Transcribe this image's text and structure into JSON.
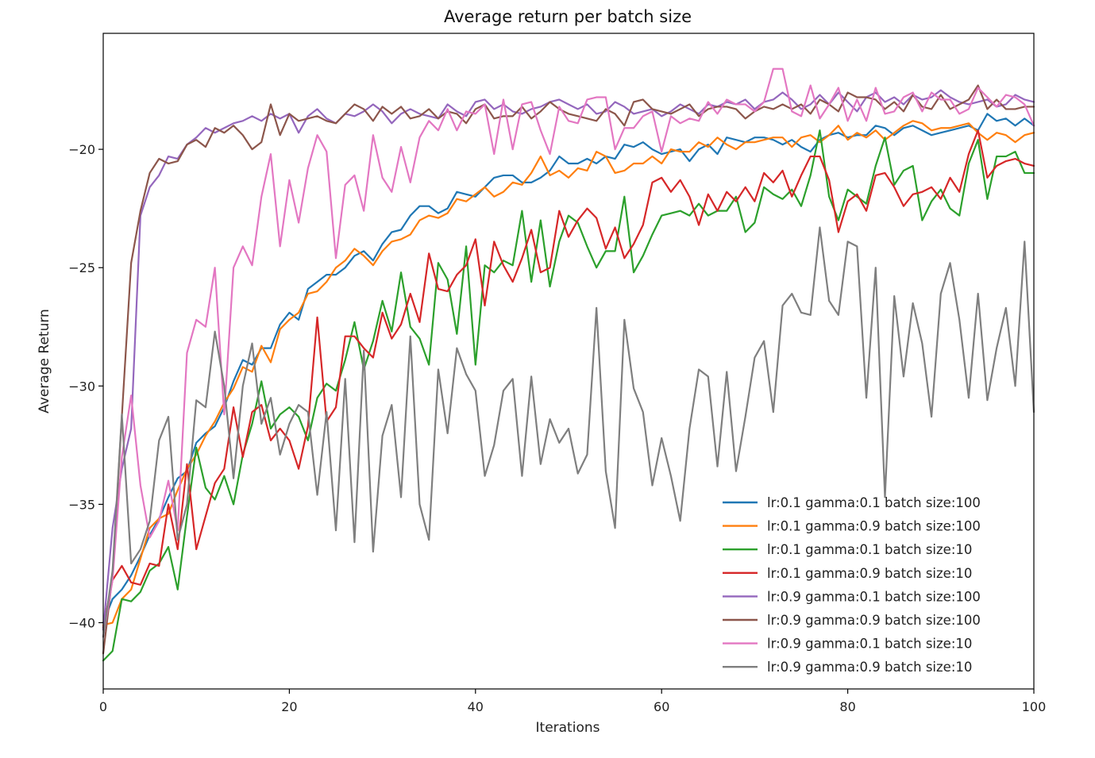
{
  "chart_data": {
    "type": "line",
    "title": "Average return per batch size",
    "xlabel": "Iterations",
    "ylabel": "Average Return",
    "xlim": [
      0,
      100
    ],
    "ylim": [
      -42.8,
      -15.1
    ],
    "x_ticks": [
      0,
      20,
      40,
      60,
      80,
      100
    ],
    "y_ticks": [
      -40,
      -35,
      -30,
      -25,
      -20
    ],
    "grid": false,
    "legend_position": "lower-right",
    "x_start": 0,
    "x_step": 1,
    "series": [
      {
        "name": "lr:0.1 gamma:0.1 batch size:100",
        "color": "#1f77b4",
        "values": [
          -40.0,
          -39.0,
          -38.6,
          -38.0,
          -37.2,
          -36.3,
          -35.6,
          -34.7,
          -33.9,
          -33.6,
          -32.4,
          -32.0,
          -31.7,
          -30.9,
          -29.8,
          -28.9,
          -29.1,
          -28.4,
          -28.4,
          -27.4,
          -26.9,
          -27.2,
          -25.9,
          -25.6,
          -25.3,
          -25.3,
          -25.0,
          -24.5,
          -24.3,
          -24.7,
          -24.0,
          -23.5,
          -23.4,
          -22.8,
          -22.4,
          -22.4,
          -22.7,
          -22.5,
          -21.8,
          -21.9,
          -22.0,
          -21.6,
          -21.2,
          -21.1,
          -21.1,
          -21.4,
          -21.4,
          -21.2,
          -20.9,
          -20.3,
          -20.6,
          -20.6,
          -20.4,
          -20.6,
          -20.3,
          -20.4,
          -19.8,
          -19.9,
          -19.7,
          -20.0,
          -20.2,
          -20.1,
          -20.0,
          -20.5,
          -20.0,
          -19.8,
          -20.2,
          -19.5,
          -19.6,
          -19.7,
          -19.5,
          -19.5,
          -19.6,
          -19.8,
          -19.6,
          -19.9,
          -20.1,
          -19.6,
          -19.4,
          -19.3,
          -19.5,
          -19.4,
          -19.4,
          -19.0,
          -19.1,
          -19.4,
          -19.1,
          -19.0,
          -19.2,
          -19.4,
          -19.3,
          -19.2,
          -19.1,
          -19.0,
          -19.2,
          -18.5,
          -18.8,
          -18.7,
          -19.0,
          -18.7,
          -19.0
        ]
      },
      {
        "name": "lr:0.1 gamma:0.9 batch size:100",
        "color": "#ff7f0e",
        "values": [
          -40.1,
          -40.0,
          -39.0,
          -38.6,
          -37.3,
          -36.0,
          -35.6,
          -35.4,
          -34.4,
          -33.5,
          -32.9,
          -32.1,
          -31.5,
          -30.7,
          -30.1,
          -29.2,
          -29.4,
          -28.3,
          -29.0,
          -27.6,
          -27.2,
          -26.9,
          -26.1,
          -26.0,
          -25.6,
          -25.0,
          -24.7,
          -24.2,
          -24.5,
          -24.9,
          -24.3,
          -23.9,
          -23.8,
          -23.6,
          -23.0,
          -22.8,
          -22.9,
          -22.7,
          -22.1,
          -22.2,
          -21.9,
          -21.6,
          -22.0,
          -21.8,
          -21.4,
          -21.5,
          -21.0,
          -20.3,
          -21.1,
          -20.9,
          -21.2,
          -20.8,
          -20.9,
          -20.1,
          -20.3,
          -21.0,
          -20.9,
          -20.6,
          -20.6,
          -20.3,
          -20.6,
          -20.0,
          -20.1,
          -20.1,
          -19.7,
          -19.9,
          -19.5,
          -19.8,
          -20.0,
          -19.7,
          -19.7,
          -19.6,
          -19.5,
          -19.5,
          -19.9,
          -19.5,
          -19.4,
          -19.7,
          -19.4,
          -19.0,
          -19.6,
          -19.3,
          -19.5,
          -19.2,
          -19.6,
          -19.3,
          -19.0,
          -18.8,
          -18.9,
          -19.2,
          -19.1,
          -19.1,
          -19.0,
          -18.9,
          -19.3,
          -19.6,
          -19.3,
          -19.4,
          -19.7,
          -19.4,
          -19.3
        ]
      },
      {
        "name": "lr:0.1 gamma:0.1 batch size:10",
        "color": "#2ca02c",
        "values": [
          -41.6,
          -41.2,
          -39.0,
          -39.1,
          -38.7,
          -37.8,
          -37.5,
          -36.8,
          -38.6,
          -35.5,
          -32.6,
          -34.3,
          -34.8,
          -33.8,
          -35.0,
          -32.9,
          -31.6,
          -29.8,
          -31.8,
          -31.2,
          -30.9,
          -31.3,
          -32.3,
          -30.5,
          -29.9,
          -30.2,
          -28.9,
          -27.3,
          -29.3,
          -28.1,
          -26.4,
          -27.7,
          -25.2,
          -27.5,
          -28.0,
          -29.1,
          -24.8,
          -25.5,
          -27.8,
          -24.1,
          -29.1,
          -24.9,
          -25.2,
          -24.7,
          -24.9,
          -22.6,
          -25.6,
          -23.0,
          -25.8,
          -23.9,
          -22.8,
          -23.1,
          -24.1,
          -25.0,
          -24.3,
          -24.3,
          -22.0,
          -25.2,
          -24.5,
          -23.6,
          -22.8,
          -22.7,
          -22.6,
          -22.8,
          -22.3,
          -22.8,
          -22.6,
          -22.6,
          -22.0,
          -23.5,
          -23.1,
          -21.6,
          -21.9,
          -22.1,
          -21.7,
          -22.4,
          -21.1,
          -19.2,
          -22.0,
          -23.0,
          -21.7,
          -22.0,
          -22.3,
          -20.7,
          -19.5,
          -21.5,
          -20.9,
          -20.7,
          -23.0,
          -22.2,
          -21.7,
          -22.5,
          -22.8,
          -20.6,
          -19.6,
          -22.1,
          -20.3,
          -20.3,
          -20.1,
          -21.0,
          -21.0
        ]
      },
      {
        "name": "lr:0.1 gamma:0.9 batch size:10",
        "color": "#d62728",
        "values": [
          -40.2,
          -38.2,
          -37.6,
          -38.3,
          -38.4,
          -37.5,
          -37.6,
          -35.0,
          -36.9,
          -33.3,
          -36.9,
          -35.5,
          -34.1,
          -33.5,
          -30.9,
          -33.0,
          -31.1,
          -30.8,
          -32.3,
          -31.8,
          -32.3,
          -33.5,
          -31.7,
          -27.1,
          -31.5,
          -30.9,
          -27.9,
          -27.9,
          -28.4,
          -28.8,
          -26.9,
          -28.0,
          -27.4,
          -26.1,
          -27.3,
          -24.4,
          -25.9,
          -26.0,
          -25.3,
          -24.9,
          -23.8,
          -26.6,
          -23.9,
          -24.9,
          -25.6,
          -24.6,
          -23.4,
          -25.2,
          -25.0,
          -22.6,
          -23.7,
          -23.0,
          -22.5,
          -22.9,
          -24.2,
          -23.3,
          -24.6,
          -24.0,
          -23.2,
          -21.4,
          -21.2,
          -21.8,
          -21.3,
          -22.0,
          -23.2,
          -21.9,
          -22.6,
          -21.8,
          -22.2,
          -21.6,
          -22.2,
          -21.0,
          -21.4,
          -20.9,
          -22.0,
          -21.1,
          -20.3,
          -20.3,
          -21.3,
          -23.5,
          -22.2,
          -21.9,
          -22.6,
          -21.1,
          -21.0,
          -21.6,
          -22.4,
          -21.9,
          -21.8,
          -21.6,
          -22.1,
          -21.2,
          -21.8,
          -20.2,
          -19.2,
          -21.2,
          -20.7,
          -20.5,
          -20.4,
          -20.6,
          -20.7
        ]
      },
      {
        "name": "lr:0.9 gamma:0.1 batch size:100",
        "color": "#9467bd",
        "values": [
          -40.3,
          -36.0,
          -33.5,
          -31.8,
          -22.8,
          -21.6,
          -21.1,
          -20.3,
          -20.4,
          -19.8,
          -19.5,
          -19.1,
          -19.3,
          -19.1,
          -18.9,
          -18.8,
          -18.6,
          -18.8,
          -18.5,
          -18.7,
          -18.5,
          -19.3,
          -18.6,
          -18.3,
          -18.7,
          -18.9,
          -18.5,
          -18.6,
          -18.4,
          -18.1,
          -18.4,
          -18.9,
          -18.5,
          -18.3,
          -18.5,
          -18.6,
          -18.7,
          -18.1,
          -18.4,
          -18.6,
          -18.0,
          -17.9,
          -18.3,
          -18.1,
          -18.4,
          -18.5,
          -18.3,
          -18.2,
          -18.0,
          -17.9,
          -18.1,
          -18.3,
          -18.1,
          -18.5,
          -18.4,
          -18.0,
          -18.2,
          -18.5,
          -18.4,
          -18.3,
          -18.6,
          -18.4,
          -18.1,
          -18.3,
          -18.5,
          -18.1,
          -18.2,
          -18.0,
          -18.1,
          -17.9,
          -18.3,
          -18.0,
          -17.9,
          -17.6,
          -17.9,
          -18.3,
          -18.1,
          -17.7,
          -18.1,
          -17.6,
          -18.0,
          -18.4,
          -17.8,
          -17.6,
          -18.0,
          -17.8,
          -18.1,
          -17.7,
          -17.9,
          -17.8,
          -17.5,
          -17.8,
          -18.0,
          -18.1,
          -18.0,
          -17.9,
          -18.2,
          -18.1,
          -17.7,
          -17.9,
          -18.0
        ]
      },
      {
        "name": "lr:0.9 gamma:0.9 batch size:100",
        "color": "#8c564b",
        "values": [
          -41.3,
          -38.0,
          -31.3,
          -24.8,
          -22.6,
          -21.0,
          -20.4,
          -20.6,
          -20.5,
          -19.8,
          -19.6,
          -19.9,
          -19.1,
          -19.3,
          -19.0,
          -19.4,
          -20.0,
          -19.7,
          -18.1,
          -19.4,
          -18.5,
          -18.8,
          -18.7,
          -18.6,
          -18.8,
          -18.9,
          -18.5,
          -18.1,
          -18.3,
          -18.8,
          -18.2,
          -18.5,
          -18.2,
          -18.7,
          -18.6,
          -18.3,
          -18.7,
          -18.4,
          -18.5,
          -18.9,
          -18.3,
          -18.1,
          -18.7,
          -18.6,
          -18.6,
          -18.2,
          -18.7,
          -18.4,
          -18.0,
          -18.3,
          -18.5,
          -18.6,
          -18.7,
          -18.8,
          -18.3,
          -18.5,
          -19.0,
          -18.0,
          -17.9,
          -18.3,
          -18.4,
          -18.5,
          -18.3,
          -18.1,
          -18.6,
          -18.3,
          -18.2,
          -18.2,
          -18.3,
          -18.7,
          -18.4,
          -18.2,
          -18.3,
          -18.1,
          -18.3,
          -18.1,
          -18.5,
          -17.9,
          -18.1,
          -18.4,
          -17.6,
          -17.8,
          -17.8,
          -17.9,
          -18.3,
          -18.0,
          -18.4,
          -17.7,
          -18.2,
          -18.3,
          -17.7,
          -18.3,
          -18.1,
          -17.9,
          -17.3,
          -18.3,
          -17.9,
          -18.3,
          -18.3,
          -18.2,
          -18.2
        ]
      },
      {
        "name": "lr:0.9 gamma:0.1 batch size:10",
        "color": "#e377c2",
        "values": [
          -40.6,
          -38.2,
          -33.0,
          -30.4,
          -34.2,
          -36.4,
          -35.7,
          -34.0,
          -36.1,
          -28.6,
          -27.2,
          -27.5,
          -25.0,
          -31.2,
          -25.0,
          -24.1,
          -24.9,
          -22.0,
          -20.2,
          -24.1,
          -21.3,
          -23.1,
          -20.8,
          -19.4,
          -20.1,
          -24.6,
          -21.5,
          -21.1,
          -22.6,
          -19.4,
          -21.2,
          -21.8,
          -19.9,
          -21.4,
          -19.5,
          -18.8,
          -19.2,
          -18.3,
          -19.2,
          -18.4,
          -18.5,
          -18.1,
          -20.2,
          -17.9,
          -20.0,
          -18.1,
          -18.0,
          -19.2,
          -20.2,
          -18.2,
          -18.8,
          -18.9,
          -17.9,
          -17.8,
          -17.8,
          -20.0,
          -19.1,
          -19.1,
          -18.6,
          -18.4,
          -20.1,
          -18.6,
          -18.9,
          -18.7,
          -18.8,
          -18.0,
          -18.5,
          -17.9,
          -18.1,
          -18.1,
          -18.4,
          -18.0,
          -16.6,
          -16.6,
          -18.4,
          -18.6,
          -17.3,
          -18.7,
          -18.1,
          -17.4,
          -18.8,
          -17.9,
          -18.8,
          -17.4,
          -18.5,
          -18.4,
          -17.8,
          -17.6,
          -18.4,
          -17.6,
          -17.9,
          -17.9,
          -18.5,
          -18.3,
          -17.4,
          -17.8,
          -18.2,
          -17.7,
          -17.8,
          -18.1,
          -19.0
        ]
      },
      {
        "name": "lr:0.9 gamma:0.9 batch size:10",
        "color": "#7f7f7f",
        "values": [
          -40.6,
          -37.8,
          -31.2,
          -37.5,
          -36.9,
          -35.7,
          -32.3,
          -31.3,
          -36.5,
          -35.0,
          -30.6,
          -30.9,
          -27.7,
          -30.0,
          -33.9,
          -30.0,
          -28.2,
          -31.6,
          -30.5,
          -32.9,
          -31.6,
          -30.8,
          -31.1,
          -34.6,
          -31.1,
          -36.1,
          -29.7,
          -36.6,
          -28.5,
          -37.0,
          -32.1,
          -30.8,
          -34.7,
          -27.9,
          -35.0,
          -36.5,
          -29.3,
          -32.0,
          -28.4,
          -29.5,
          -30.2,
          -33.8,
          -32.5,
          -30.2,
          -29.7,
          -33.8,
          -29.6,
          -33.3,
          -31.4,
          -32.4,
          -31.8,
          -33.7,
          -32.9,
          -26.7,
          -33.6,
          -36.0,
          -27.2,
          -30.1,
          -31.1,
          -34.2,
          -32.2,
          -33.8,
          -35.7,
          -31.8,
          -29.3,
          -29.6,
          -33.4,
          -29.4,
          -33.6,
          -31.3,
          -28.8,
          -28.1,
          -31.1,
          -26.6,
          -26.1,
          -26.9,
          -27.0,
          -23.3,
          -26.4,
          -27.0,
          -23.9,
          -24.1,
          -30.5,
          -25.0,
          -34.7,
          -26.2,
          -29.6,
          -26.5,
          -28.2,
          -31.3,
          -26.1,
          -24.8,
          -27.2,
          -30.5,
          -26.1,
          -30.6,
          -28.4,
          -26.7,
          -30.0,
          -23.9,
          -31.1
        ]
      }
    ]
  }
}
